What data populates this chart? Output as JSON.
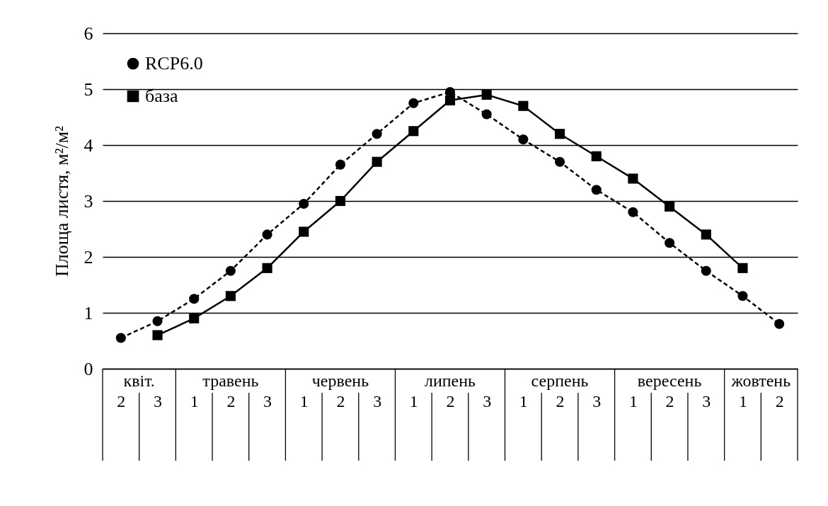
{
  "chart_data": {
    "type": "line",
    "ylabel": "Площа листя, м²/м²",
    "categories": [
      "2",
      "3",
      "1",
      "2",
      "3",
      "1",
      "2",
      "3",
      "1",
      "2",
      "3",
      "1",
      "2",
      "3",
      "1",
      "2",
      "3",
      "1",
      "2"
    ],
    "annotations": [
      "квіт.",
      "травень",
      "червень",
      "липень",
      "серпень",
      "вересень",
      "жовтень"
    ],
    "series": [
      {
        "name": "RCP6.0",
        "color": "#000000",
        "marker": "circle",
        "line_style": "dashed",
        "values": [
          0.55,
          0.85,
          1.25,
          1.75,
          2.4,
          2.95,
          3.65,
          4.2,
          4.75,
          4.95,
          4.55,
          4.1,
          3.7,
          3.2,
          2.8,
          2.25,
          1.75,
          1.3,
          0.8
        ]
      },
      {
        "name": "база",
        "color": "#000000",
        "marker": "square",
        "line_style": "solid",
        "values": [
          null,
          0.6,
          0.9,
          1.3,
          1.8,
          2.45,
          3.0,
          3.7,
          4.25,
          4.8,
          4.9,
          4.7,
          4.2,
          3.8,
          3.4,
          2.9,
          2.4,
          1.8,
          null
        ]
      }
    ],
    "ylim": [
      0,
      6
    ],
    "yticks": [
      0,
      1,
      2,
      3,
      4,
      5,
      6
    ],
    "grid": "y",
    "legend": "top left"
  }
}
